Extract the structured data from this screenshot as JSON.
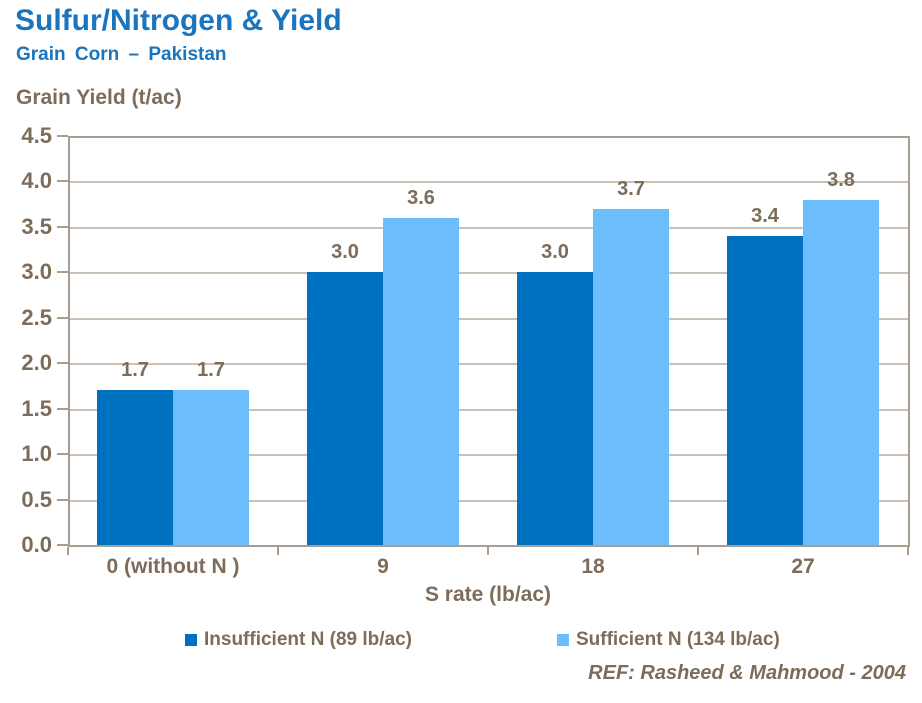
{
  "header": {
    "title": "Sulfur/Nitrogen & Yield",
    "subtitle": "Grain Corn – Pakistan"
  },
  "chart_data": {
    "type": "bar",
    "title": "Sulfur/Nitrogen & Yield",
    "subtitle": "Grain Corn – Pakistan",
    "y_axis_label": "Grain Yield (t/ac)",
    "x_axis_label": "S rate (lb/ac)",
    "categories": [
      "0 (without N )",
      "9",
      "18",
      "27"
    ],
    "series": [
      {
        "name": "Insufficient N (89 lb/ac)",
        "color": "#0070C0",
        "values": [
          1.7,
          3.0,
          3.0,
          3.4
        ]
      },
      {
        "name": "Sufficient N (134 lb/ac)",
        "color": "#6CBDFB",
        "values": [
          1.7,
          3.6,
          3.7,
          3.8
        ]
      }
    ],
    "ylim": [
      0,
      4.5
    ],
    "ytick_step": 0.5,
    "grid": true,
    "data_labels": true,
    "legend_position": "bottom"
  },
  "footer": {
    "reference": "REF: Rasheed & Mahmood - 2004"
  },
  "colors": {
    "title_blue": "#1A74BE",
    "label_taupe": "#7D6C59",
    "axis_line": "#A79D91",
    "gridline": "#C9C1B6",
    "series1": "#0070C0",
    "series2": "#6CBDFB"
  }
}
